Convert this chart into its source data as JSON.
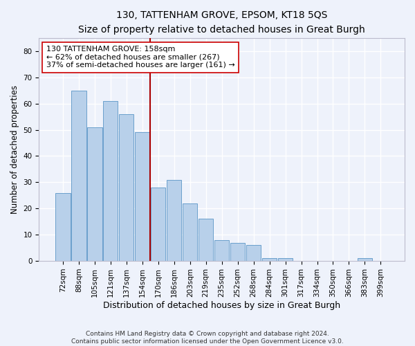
{
  "title": "130, TATTENHAM GROVE, EPSOM, KT18 5QS",
  "subtitle": "Size of property relative to detached houses in Great Burgh",
  "xlabel": "Distribution of detached houses by size in Great Burgh",
  "ylabel": "Number of detached properties",
  "categories": [
    "72sqm",
    "88sqm",
    "105sqm",
    "121sqm",
    "137sqm",
    "154sqm",
    "170sqm",
    "186sqm",
    "203sqm",
    "219sqm",
    "235sqm",
    "252sqm",
    "268sqm",
    "284sqm",
    "301sqm",
    "317sqm",
    "334sqm",
    "350sqm",
    "366sqm",
    "383sqm",
    "399sqm"
  ],
  "values": [
    26,
    65,
    51,
    61,
    56,
    49,
    28,
    31,
    22,
    16,
    8,
    7,
    6,
    1,
    1,
    0,
    0,
    0,
    0,
    1,
    0
  ],
  "bar_color": "#b8d0ea",
  "bar_edge_color": "#6aa0cc",
  "background_color": "#eef2fb",
  "grid_color": "#ffffff",
  "vline_x_index": 5,
  "vline_color": "#aa0000",
  "annotation_line1": "130 TATTENHAM GROVE: 158sqm",
  "annotation_line2": "← 62% of detached houses are smaller (267)",
  "annotation_line3": "37% of semi-detached houses are larger (161) →",
  "annotation_box_facecolor": "#ffffff",
  "annotation_box_edgecolor": "#cc0000",
  "ylim": [
    0,
    85
  ],
  "yticks": [
    0,
    10,
    20,
    30,
    40,
    50,
    60,
    70,
    80
  ],
  "footnote": "Contains HM Land Registry data © Crown copyright and database right 2024.\nContains public sector information licensed under the Open Government Licence v3.0.",
  "title_fontsize": 10,
  "subtitle_fontsize": 9.5,
  "xlabel_fontsize": 9,
  "ylabel_fontsize": 8.5,
  "tick_fontsize": 7.5,
  "annotation_fontsize": 8,
  "footnote_fontsize": 6.5
}
